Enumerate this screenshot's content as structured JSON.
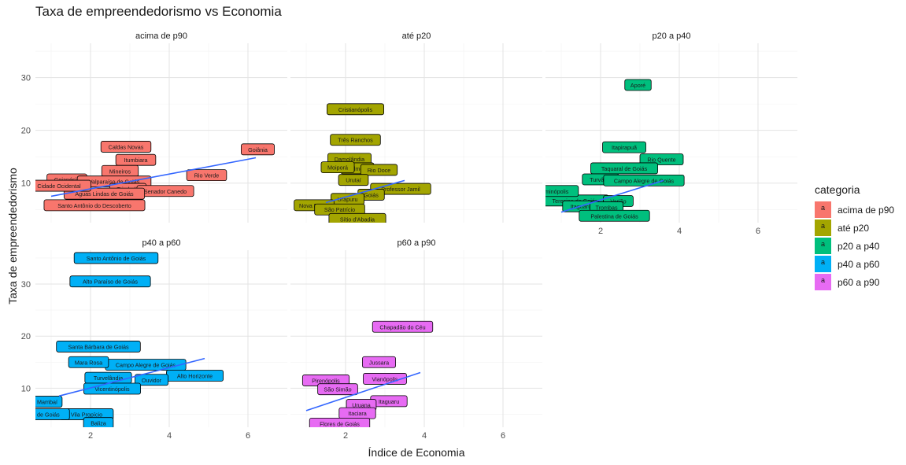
{
  "chart_data": {
    "type": "scatter",
    "title": "Taxa de empreendedorismo vs Economia",
    "xlabel": "Índice de Economia",
    "ylabel": "Taxa de empreendedorismo",
    "xlim": [
      0.6,
      7.0
    ],
    "ylim": [
      2.5,
      36.5
    ],
    "x_ticks": [
      2,
      4,
      6
    ],
    "y_ticks": [
      10,
      20,
      30
    ],
    "grid": true,
    "legend_position": "right",
    "legend_title": "categoria",
    "legend_key_label": "a",
    "colors": {
      "acima de p90": "#F8766D",
      "até p20": "#A3A500",
      "p20 a p40": "#00BF7D",
      "p40 a p60": "#00B0F6",
      "p60 a p90": "#E76BF3"
    },
    "trend_color": "#3366FF",
    "panels": [
      {
        "name": "acima de p90",
        "trend": [
          [
            1.0,
            7.5
          ],
          [
            6.2,
            14.8
          ]
        ],
        "points": [
          {
            "label": "Goiânia",
            "x": 6.25,
            "y": 16.4
          },
          {
            "label": "Caldas Novas",
            "x": 2.9,
            "y": 16.9
          },
          {
            "label": "Itumbiara",
            "x": 3.15,
            "y": 14.4
          },
          {
            "label": "Rio Verde",
            "x": 4.95,
            "y": 11.5
          },
          {
            "label": "Goianésia",
            "x": 1.4,
            "y": 10.7
          },
          {
            "label": "Mineiros",
            "x": 2.75,
            "y": 12.3
          },
          {
            "label": "Valparaíso de Goiás",
            "x": 2.6,
            "y": 10.3
          },
          {
            "label": "Trindade",
            "x": 2.95,
            "y": 8.9
          },
          {
            "label": "Senador Canedo",
            "x": 3.9,
            "y": 8.5
          },
          {
            "label": "Águas Lindas de Goiás",
            "x": 2.35,
            "y": 8.0
          },
          {
            "label": "Santo Antônio do Descoberto",
            "x": 2.1,
            "y": 5.8
          },
          {
            "label": "Cidade Ocidental",
            "x": 1.2,
            "y": 9.5
          }
        ]
      },
      {
        "name": "até p20",
        "trend": [
          {
            "x": 1.5,
            "y": 6.3
          },
          {
            "x": 3.5,
            "y": 10.5
          }
        ],
        "points": [
          {
            "label": "Cristianópolis",
            "x": 2.25,
            "y": 24.0
          },
          {
            "label": "Três Ranchos",
            "x": 2.25,
            "y": 18.2
          },
          {
            "label": "Damolândia",
            "x": 2.1,
            "y": 14.6
          },
          {
            "label": "Palmelo",
            "x": 2.3,
            "y": 12.8
          },
          {
            "label": "Rio Doce",
            "x": 2.85,
            "y": 12.5
          },
          {
            "label": "Moiporá",
            "x": 1.8,
            "y": 13.0
          },
          {
            "label": "Urutaí",
            "x": 2.2,
            "y": 10.6
          },
          {
            "label": "Professor Jamil",
            "x": 3.4,
            "y": 8.9
          },
          {
            "label": "Goiás",
            "x": 2.65,
            "y": 7.8
          },
          {
            "label": "Urapuru",
            "x": 2.05,
            "y": 7.0
          },
          {
            "label": "Nova Roma",
            "x": 1.2,
            "y": 5.8
          },
          {
            "label": "São Patrício",
            "x": 1.85,
            "y": 5.0
          },
          {
            "label": "Sítio d'Abadia",
            "x": 2.3,
            "y": 3.2
          }
        ]
      },
      {
        "name": "p20 a p40",
        "trend": [
          [
            1.0,
            4.5
          ],
          [
            3.6,
            10.5
          ]
        ],
        "points": [
          {
            "label": "Aporé",
            "x": 2.95,
            "y": 28.6
          },
          {
            "label": "Itapirapuã",
            "x": 2.6,
            "y": 16.8
          },
          {
            "label": "Rio Quente",
            "x": 3.55,
            "y": 14.5
          },
          {
            "label": "Taquaral de Goiás",
            "x": 2.6,
            "y": 12.8
          },
          {
            "label": "Turvânia",
            "x": 2.0,
            "y": 10.7
          },
          {
            "label": "Campo Alegre de Goiás",
            "x": 3.1,
            "y": 10.5
          },
          {
            "label": "Teresina de Goiás",
            "x": 1.35,
            "y": 6.7
          },
          {
            "label": "Varjão",
            "x": 2.45,
            "y": 6.6
          },
          {
            "label": "Itaguaru",
            "x": 1.5,
            "y": 5.6
          },
          {
            "label": "Trombas",
            "x": 2.15,
            "y": 5.4
          },
          {
            "label": "Firminópolis",
            "x": 0.8,
            "y": 8.5
          },
          {
            "label": "Palestina de Goiás",
            "x": 2.35,
            "y": 3.8
          }
        ]
      },
      {
        "name": "p40 a p60",
        "trend": [
          [
            1.2,
            8.5
          ],
          [
            4.9,
            15.7
          ]
        ],
        "points": [
          {
            "label": "Santo Antônio de Goiás",
            "x": 2.65,
            "y": 35.0
          },
          {
            "label": "Alto Paraíso de Goiás",
            "x": 2.5,
            "y": 30.5
          },
          {
            "label": "Santa Bárbara de Goiás",
            "x": 2.2,
            "y": 18.0
          },
          {
            "label": "Alto Horizonte",
            "x": 4.65,
            "y": 12.4
          },
          {
            "label": "Campo Alegre de Goiás",
            "x": 3.4,
            "y": 14.5
          },
          {
            "label": "Mara Rosa",
            "x": 1.95,
            "y": 15.0
          },
          {
            "label": "Turvelândia",
            "x": 2.45,
            "y": 12.0
          },
          {
            "label": "Ouvidor",
            "x": 3.55,
            "y": 11.6
          },
          {
            "label": "Vicentinópolis",
            "x": 2.55,
            "y": 9.9
          },
          {
            "label": "Vila Propício",
            "x": 1.9,
            "y": 5.0
          },
          {
            "label": "Mambaí",
            "x": 0.9,
            "y": 7.4
          },
          {
            "label": "Alegre de Goiás",
            "x": 0.7,
            "y": 5.0
          },
          {
            "label": "Baliza",
            "x": 2.2,
            "y": 3.3
          }
        ]
      },
      {
        "name": "p60 a p90",
        "trend": [
          [
            1.0,
            5.7
          ],
          [
            3.9,
            13.0
          ]
        ],
        "points": [
          {
            "label": "Chapadão do Céu",
            "x": 3.45,
            "y": 21.8
          },
          {
            "label": "Jussara",
            "x": 2.85,
            "y": 15.0
          },
          {
            "label": "Pirenópolis",
            "x": 1.5,
            "y": 11.5
          },
          {
            "label": "Vianópolis",
            "x": 3.0,
            "y": 11.8
          },
          {
            "label": "São Simão",
            "x": 1.8,
            "y": 9.8
          },
          {
            "label": "Itaguaru",
            "x": 3.1,
            "y": 7.5
          },
          {
            "label": "Uruana",
            "x": 2.4,
            "y": 6.8
          },
          {
            "label": "Itaciara",
            "x": 2.3,
            "y": 5.2
          },
          {
            "label": "Flores de Goiás",
            "x": 1.85,
            "y": 3.2
          }
        ]
      }
    ]
  }
}
